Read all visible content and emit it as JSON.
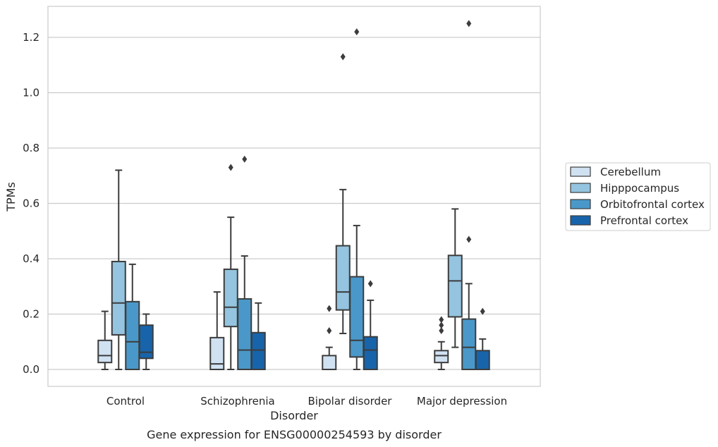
{
  "caption": "Gene expression for ENSG00000254593 by disorder",
  "chart_data": {
    "type": "box",
    "xlabel": "Disorder",
    "ylabel": "TPMs",
    "ylim": [
      -0.06,
      1.32
    ],
    "yticks": [
      0.0,
      0.2,
      0.4,
      0.6,
      0.8,
      1.0,
      1.2
    ],
    "ytick_labels": [
      "0.0",
      "0.2",
      "0.4",
      "0.6",
      "0.8",
      "1.0",
      "1.2"
    ],
    "grid": "horizontal",
    "legend_position": "right",
    "categories": [
      "Control",
      "Schizophrenia",
      "Bipolar disorder",
      "Major depression"
    ],
    "series": [
      {
        "name": "Cerebellum",
        "color": "#d0e1f2",
        "boxes": [
          {
            "whislo": 0.0,
            "q1": 0.025,
            "med": 0.05,
            "q3": 0.105,
            "whishi": 0.21,
            "fliers": []
          },
          {
            "whislo": 0.0,
            "q1": 0.0,
            "med": 0.02,
            "q3": 0.115,
            "whishi": 0.28,
            "fliers": []
          },
          {
            "whislo": 0.0,
            "q1": 0.0,
            "med": 0.0,
            "q3": 0.05,
            "whishi": 0.08,
            "fliers": [
              0.14,
              0.22
            ]
          },
          {
            "whislo": 0.0,
            "q1": 0.025,
            "med": 0.05,
            "q3": 0.068,
            "whishi": 0.1,
            "fliers": [
              0.14,
              0.16,
              0.18
            ]
          }
        ]
      },
      {
        "name": "Hipppocampus",
        "color": "#94c4df",
        "boxes": [
          {
            "whislo": 0.0,
            "q1": 0.125,
            "med": 0.24,
            "q3": 0.39,
            "whishi": 0.72,
            "fliers": []
          },
          {
            "whislo": 0.0,
            "q1": 0.155,
            "med": 0.225,
            "q3": 0.362,
            "whishi": 0.55,
            "fliers": [
              0.73
            ]
          },
          {
            "whislo": 0.13,
            "q1": 0.215,
            "med": 0.28,
            "q3": 0.447,
            "whishi": 0.65,
            "fliers": [
              1.13
            ]
          },
          {
            "whislo": 0.08,
            "q1": 0.19,
            "med": 0.32,
            "q3": 0.412,
            "whishi": 0.58,
            "fliers": []
          }
        ]
      },
      {
        "name": "Orbitofrontal cortex",
        "color": "#4a98c9",
        "boxes": [
          {
            "whislo": 0.0,
            "q1": 0.0,
            "med": 0.1,
            "q3": 0.245,
            "whishi": 0.38,
            "fliers": []
          },
          {
            "whislo": 0.0,
            "q1": 0.0,
            "med": 0.07,
            "q3": 0.255,
            "whishi": 0.41,
            "fliers": [
              0.76
            ]
          },
          {
            "whislo": 0.0,
            "q1": 0.045,
            "med": 0.105,
            "q3": 0.335,
            "whishi": 0.52,
            "fliers": [
              1.22
            ]
          },
          {
            "whislo": 0.0,
            "q1": 0.0,
            "med": 0.08,
            "q3": 0.182,
            "whishi": 0.31,
            "fliers": [
              0.47,
              1.25
            ]
          }
        ]
      },
      {
        "name": "Prefrontal cortex",
        "color": "#1764ab",
        "boxes": [
          {
            "whislo": 0.0,
            "q1": 0.04,
            "med": 0.062,
            "q3": 0.16,
            "whishi": 0.2,
            "fliers": []
          },
          {
            "whislo": 0.0,
            "q1": 0.0,
            "med": 0.07,
            "q3": 0.133,
            "whishi": 0.24,
            "fliers": []
          },
          {
            "whislo": 0.0,
            "q1": 0.0,
            "med": 0.07,
            "q3": 0.118,
            "whishi": 0.25,
            "fliers": [
              0.31
            ]
          },
          {
            "whislo": 0.0,
            "q1": 0.0,
            "med": 0.0,
            "q3": 0.068,
            "whishi": 0.11,
            "fliers": [
              0.21
            ]
          }
        ]
      }
    ]
  }
}
